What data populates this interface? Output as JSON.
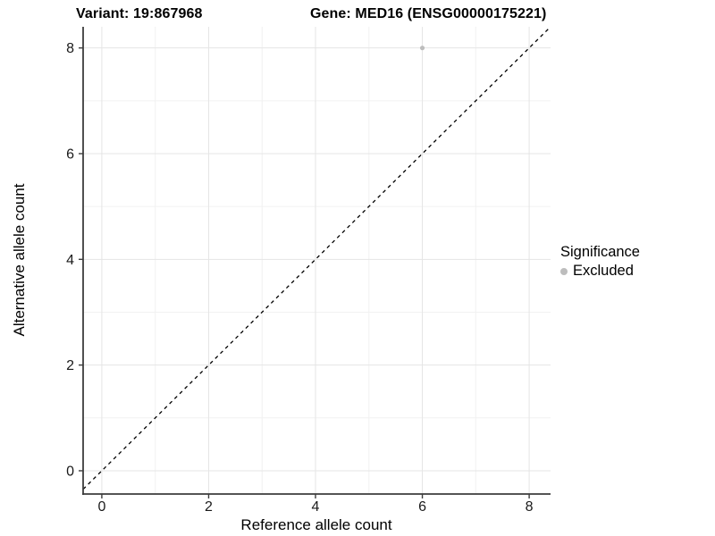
{
  "chart_data": {
    "type": "scatter",
    "titles": {
      "left": "Variant: 19:867968",
      "right": "Gene: MED16 (ENSG00000175221)"
    },
    "xlabel": "Reference allele count",
    "ylabel": "Alternative allele count",
    "xlim": [
      -0.35,
      8.4
    ],
    "ylim": [
      -0.44,
      8.4
    ],
    "x_ticks": [
      0,
      2,
      4,
      6,
      8
    ],
    "y_ticks": [
      0,
      2,
      4,
      6,
      8
    ],
    "x_minor": [
      1,
      3,
      5,
      7
    ],
    "y_minor": [
      1,
      3,
      5,
      7
    ],
    "grid": true,
    "legend_position": "right",
    "legend": {
      "title": "Significance",
      "entries": [
        {
          "label": "Excluded",
          "marker": "circle",
          "color": "#bdbdbd"
        }
      ]
    },
    "series": [
      {
        "name": "Excluded",
        "color": "#bdbdbd",
        "points": [
          {
            "x": 6,
            "y": 8
          }
        ]
      }
    ],
    "reference_line": {
      "kind": "identity",
      "style": "dashed",
      "color": "#000000"
    },
    "colors": {
      "background": "#ffffff",
      "grid_major": "#e5e5e5",
      "grid_minor": "#f1f1f1",
      "axis_line": "#3c3c3c",
      "tick_text": "#1a1a1a",
      "point": "#bdbdbd"
    }
  }
}
